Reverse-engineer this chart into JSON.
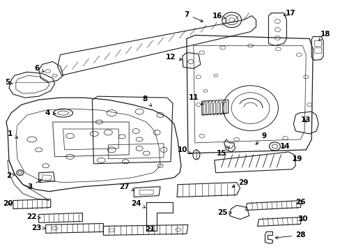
{
  "bg_color": "#ffffff",
  "line_color": "#1a1a1a",
  "lw": 0.8,
  "figsize": [
    4.89,
    3.6
  ],
  "dpi": 100
}
